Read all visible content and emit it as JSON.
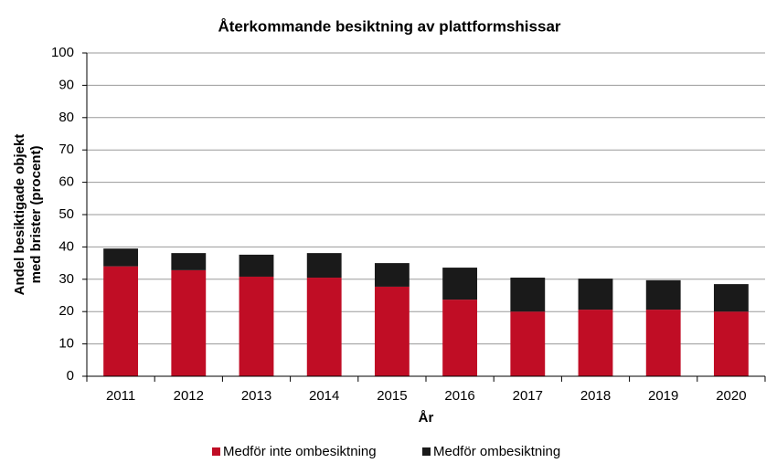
{
  "chart_data": {
    "type": "stacked_bar",
    "title": "Återkommande besiktning av plattformshissar",
    "y_label": [
      "Andel besiktigade objekt",
      "med brister (procent)"
    ],
    "x_label": "År",
    "categories": [
      "2011",
      "2012",
      "2013",
      "2014",
      "2015",
      "2016",
      "2017",
      "2018",
      "2019",
      "2020"
    ],
    "series": [
      {
        "name": "Medför inte ombesiktning",
        "color": "#c00d25",
        "values": [
          34,
          32.8,
          30.8,
          30.5,
          27.7,
          23.7,
          20,
          20.6,
          20.6,
          20
        ]
      },
      {
        "name": "Medför ombesiktning",
        "color": "#1a1a1a",
        "values": [
          5.5,
          5.3,
          6.8,
          7.6,
          7.3,
          9.9,
          10.5,
          9.6,
          9.1,
          8.5
        ]
      }
    ],
    "ylim": [
      0,
      100
    ],
    "yticks": [
      0,
      10,
      20,
      30,
      40,
      50,
      60,
      70,
      80,
      90,
      100
    ],
    "grid": true,
    "legend": "bottom"
  }
}
